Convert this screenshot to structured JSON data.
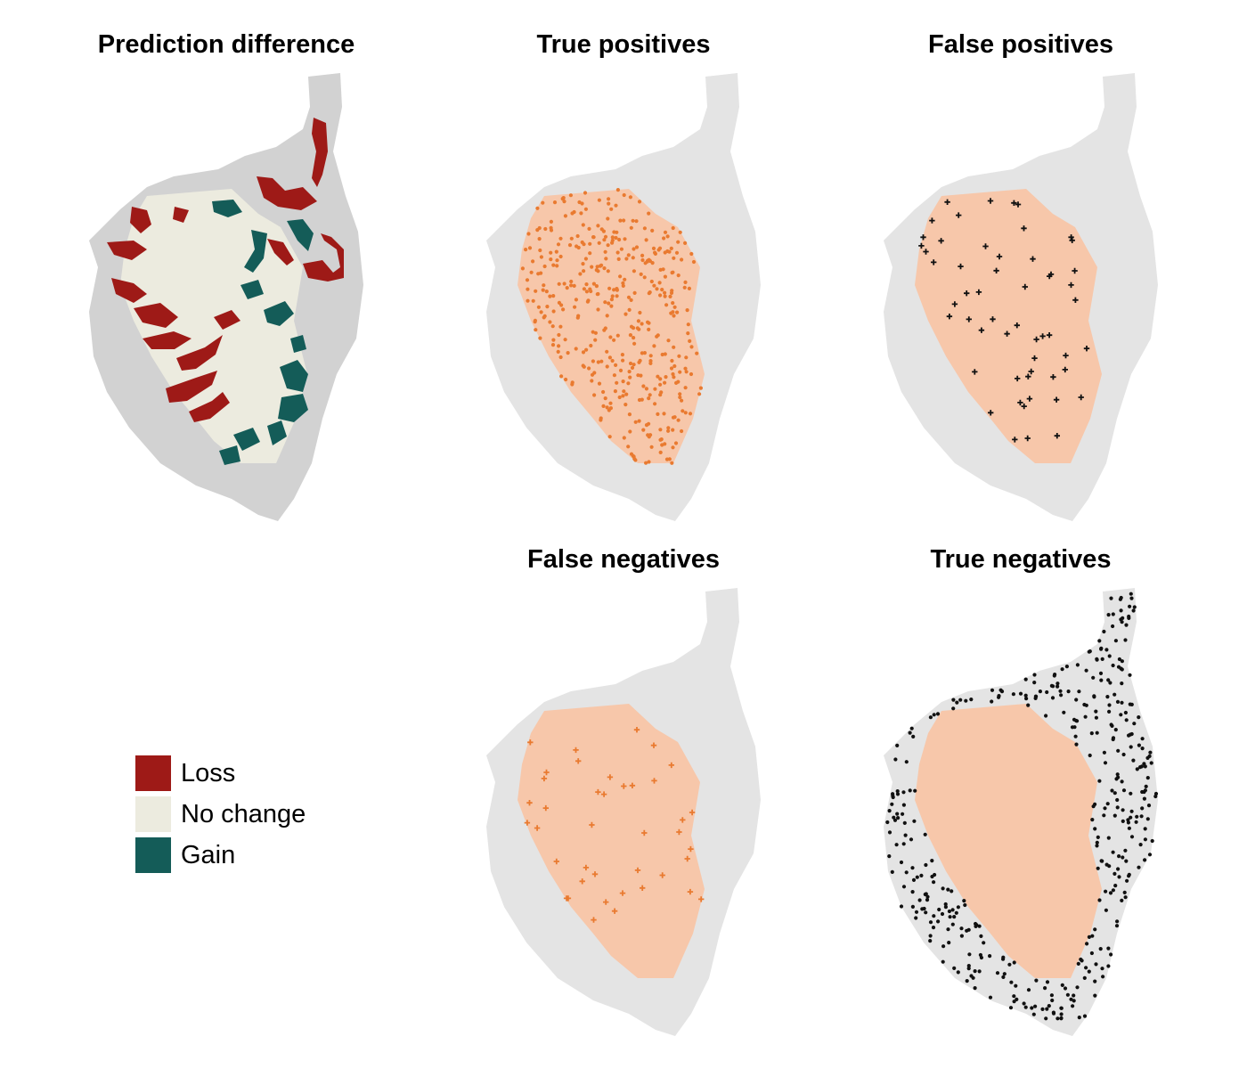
{
  "panels": {
    "prediction_difference": {
      "title": "Prediction difference"
    },
    "true_positives": {
      "title": "True positives"
    },
    "false_positives": {
      "title": "False positives"
    },
    "false_negatives": {
      "title": "False negatives"
    },
    "true_negatives": {
      "title": "True negatives"
    }
  },
  "legend": {
    "items": [
      {
        "label": "Loss",
        "color": "#9e1a17"
      },
      {
        "label": "No change",
        "color": "#ecebdf"
      },
      {
        "label": "Gain",
        "color": "#145c58"
      }
    ]
  },
  "colors": {
    "island_background_difference": "#d2d2d2",
    "island_background": "#e4e4e4",
    "predicted_presence": "#f7c7aa",
    "true_positive_point": "#e97a30",
    "false_negative_point": "#e97a30",
    "false_positive_point": "#111111",
    "true_negative_point": "#111111"
  },
  "marker_counts": {
    "true_positives": 420,
    "false_positives": 55,
    "false_negatives": 40,
    "true_negatives": 400
  }
}
